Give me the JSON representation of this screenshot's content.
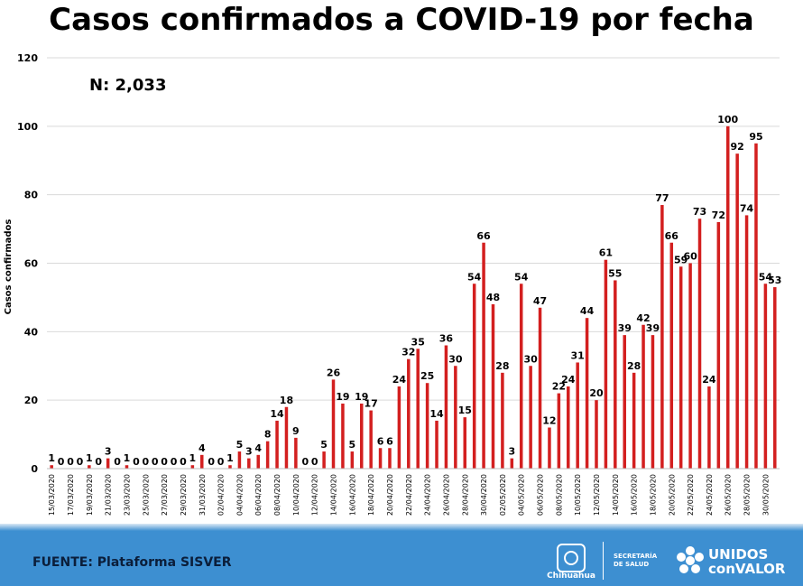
{
  "title": "Casos confirmados a COVID-19 por fecha",
  "n_label": "N: 2,033",
  "source": "FUENTE: Plataforma SISVER",
  "logos": {
    "chihuahua": "Chihuahua",
    "secretaria_line1": "SECRETARÍA",
    "secretaria_line2": "DE SALUD",
    "unidos_line1": "UNIDOS",
    "unidos_line2": "conVALOR"
  },
  "colors": {
    "bar": "#d31f1f",
    "footer": "#3d8fd1",
    "grid": "#d9d9d9"
  },
  "chart_data": {
    "type": "bar",
    "ylabel": "Casos confirmados",
    "ylim": [
      0,
      120
    ],
    "yticks": [
      0,
      20,
      40,
      60,
      80,
      100,
      120
    ],
    "grid": true,
    "categories": [
      "15/03/2020",
      "16/03/2020",
      "17/03/2020",
      "18/03/2020",
      "19/03/2020",
      "20/03/2020",
      "21/03/2020",
      "22/03/2020",
      "23/03/2020",
      "24/03/2020",
      "25/03/2020",
      "26/03/2020",
      "27/03/2020",
      "28/03/2020",
      "29/03/2020",
      "30/03/2020",
      "31/03/2020",
      "01/04/2020",
      "02/04/2020",
      "03/04/2020",
      "04/04/2020",
      "05/04/2020",
      "06/04/2020",
      "07/04/2020",
      "08/04/2020",
      "09/04/2020",
      "10/04/2020",
      "11/04/2020",
      "12/04/2020",
      "13/04/2020",
      "14/04/2020",
      "15/04/2020",
      "16/04/2020",
      "17/04/2020",
      "18/04/2020",
      "19/04/2020",
      "20/04/2020",
      "21/04/2020",
      "22/04/2020",
      "23/04/2020",
      "24/04/2020",
      "25/04/2020",
      "26/04/2020",
      "27/04/2020",
      "28/04/2020",
      "29/04/2020",
      "30/04/2020",
      "01/05/2020",
      "02/05/2020",
      "03/05/2020",
      "04/05/2020",
      "05/05/2020",
      "06/05/2020",
      "07/05/2020",
      "08/05/2020",
      "09/05/2020",
      "10/05/2020",
      "11/05/2020",
      "12/05/2020",
      "13/05/2020",
      "14/05/2020",
      "15/05/2020",
      "16/05/2020",
      "17/05/2020",
      "18/05/2020",
      "19/05/2020",
      "20/05/2020",
      "21/05/2020",
      "22/05/2020",
      "23/05/2020",
      "24/05/2020",
      "25/05/2020",
      "26/05/2020",
      "27/05/2020",
      "28/05/2020",
      "29/05/2020",
      "30/05/2020",
      "31/05/2020"
    ],
    "tick_labels": [
      "15/03/2020",
      "",
      "17/03/2020",
      "",
      "19/03/2020",
      "",
      "21/03/2020",
      "",
      "23/03/2020",
      "",
      "25/03/2020",
      "",
      "27/03/2020",
      "",
      "29/03/2020",
      "",
      "31/03/2020",
      "",
      "02/04/2020",
      "",
      "04/04/2020",
      "",
      "06/04/2020",
      "",
      "08/04/2020",
      "",
      "10/04/2020",
      "",
      "12/04/2020",
      "",
      "14/04/2020",
      "",
      "16/04/2020",
      "",
      "18/04/2020",
      "",
      "20/04/2020",
      "",
      "22/04/2020",
      "",
      "24/04/2020",
      "",
      "26/04/2020",
      "",
      "28/04/2020",
      "",
      "30/04/2020",
      "",
      "02/05/2020",
      "",
      "04/05/2020",
      "",
      "06/05/2020",
      "",
      "08/05/2020",
      "",
      "10/05/2020",
      "",
      "12/05/2020",
      "",
      "14/05/2020",
      "",
      "16/05/2020",
      "",
      "18/05/2020",
      "",
      "20/05/2020",
      "",
      "22/05/2020",
      "",
      "24/05/2020",
      "",
      "26/05/2020",
      "",
      "28/05/2020",
      "",
      "30/05/2020",
      ""
    ],
    "values": [
      1,
      0,
      0,
      0,
      1,
      0,
      3,
      0,
      1,
      0,
      0,
      0,
      0,
      0,
      0,
      1,
      4,
      0,
      0,
      1,
      5,
      3,
      4,
      8,
      14,
      18,
      9,
      0,
      0,
      5,
      26,
      19,
      5,
      19,
      17,
      6,
      6,
      24,
      32,
      35,
      25,
      14,
      36,
      30,
      15,
      54,
      66,
      48,
      28,
      3,
      54,
      30,
      47,
      12,
      22,
      24,
      31,
      44,
      20,
      61,
      55,
      39,
      28,
      42,
      39,
      77,
      66,
      59,
      60,
      73,
      24,
      72,
      100,
      92,
      74,
      95,
      54,
      53
    ]
  }
}
